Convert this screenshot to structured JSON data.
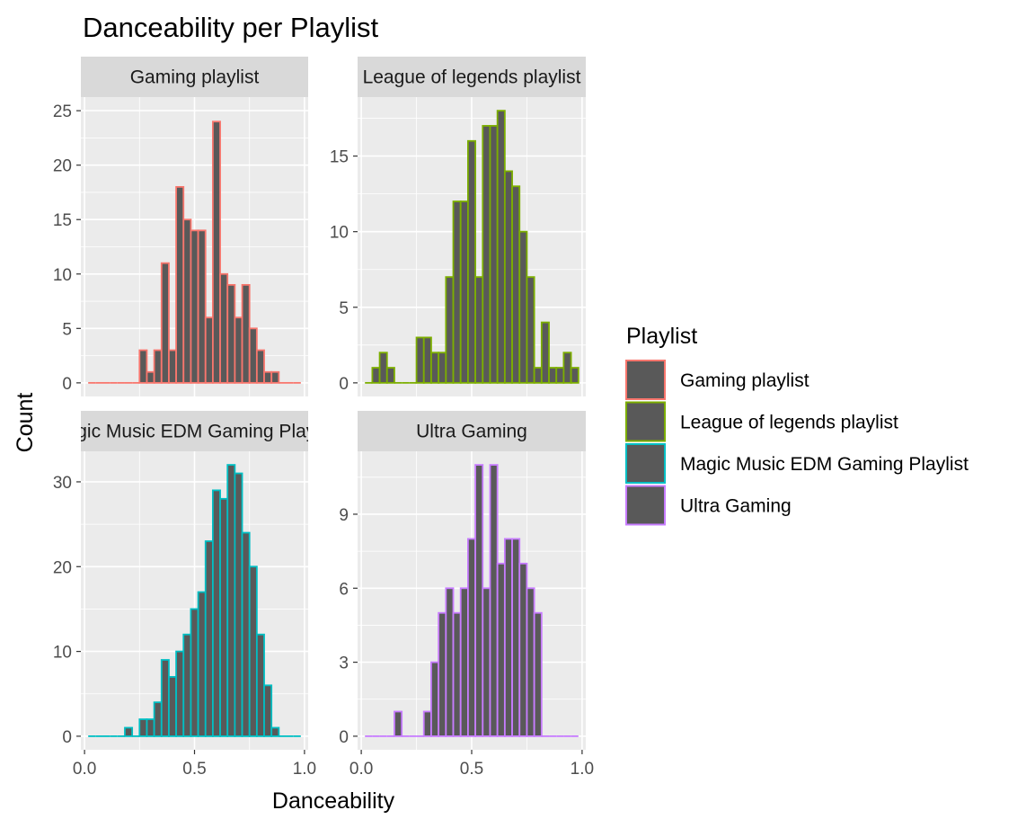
{
  "chart_data": {
    "type": "histogram",
    "title": "Danceability per Playlist",
    "xlabel": "Danceability",
    "ylabel": "Count",
    "xlim": [
      0.0,
      1.0
    ],
    "x_ticks": [
      "0.0",
      "0.5",
      "1.0"
    ],
    "bin_width": 0.0333,
    "bin_centers": [
      0.0333,
      0.0667,
      0.1,
      0.1333,
      0.1667,
      0.2,
      0.2333,
      0.2667,
      0.3,
      0.3333,
      0.3667,
      0.4,
      0.4333,
      0.4667,
      0.5,
      0.5333,
      0.5667,
      0.6,
      0.6333,
      0.6667,
      0.7,
      0.7333,
      0.7667,
      0.8,
      0.8333,
      0.8667,
      0.9,
      0.9333,
      0.9667
    ],
    "fill_color": "#595959",
    "panel_bg": "#ebebeb",
    "strip_bg": "#d9d9d9",
    "grid_color": "#ffffff",
    "legend": {
      "title": "Playlist",
      "position": "right",
      "items": [
        {
          "label": "Gaming playlist",
          "color": "#F8766D"
        },
        {
          "label": "League of legends playlist",
          "color": "#7CAE00"
        },
        {
          "label": "Magic Music EDM Gaming Playlist",
          "color": "#00BFC4"
        },
        {
          "label": "Ultra Gaming",
          "color": "#C77CFF"
        }
      ]
    },
    "panels": [
      {
        "name": "Gaming playlist",
        "strip_label": "Gaming playlist",
        "color": "#F8766D",
        "ylim": [
          0,
          25
        ],
        "y_ticks": [
          0,
          5,
          10,
          15,
          20,
          25
        ],
        "y_tick_labels": [
          "0",
          "5",
          "10",
          "15",
          "20",
          "25"
        ],
        "values": [
          0,
          0,
          0,
          0,
          0,
          0,
          0,
          3,
          1,
          3,
          11,
          3,
          18,
          15,
          14,
          14,
          6,
          24,
          10,
          9,
          6,
          9,
          5,
          3,
          1,
          1,
          0,
          0,
          0
        ]
      },
      {
        "name": "League of legends playlist",
        "strip_label": "League of legends playlist",
        "color": "#7CAE00",
        "ylim": [
          0,
          18
        ],
        "y_ticks": [
          0,
          5,
          10,
          15
        ],
        "y_tick_labels": [
          "0",
          "5",
          "10",
          "15"
        ],
        "values": [
          0,
          1,
          2,
          1,
          0,
          0,
          0,
          3,
          3,
          2,
          2,
          7,
          12,
          12,
          16,
          7,
          17,
          17,
          18,
          14,
          13,
          10,
          7,
          1,
          4,
          1,
          1,
          2,
          1
        ]
      },
      {
        "name": "Magic Music EDM Gaming Playlist",
        "strip_label": "Magic Music EDM Gaming Playlist",
        "color": "#00BFC4",
        "ylim": [
          0,
          32
        ],
        "y_ticks": [
          0,
          10,
          20,
          30
        ],
        "y_tick_labels": [
          "0",
          "10",
          "20",
          "30"
        ],
        "values": [
          0,
          0,
          0,
          0,
          0,
          1,
          0,
          2,
          2,
          4,
          9,
          7,
          10,
          12,
          15,
          17,
          23,
          29,
          28,
          32,
          31,
          24,
          20,
          12,
          6,
          1,
          0,
          0,
          0
        ]
      },
      {
        "name": "Ultra Gaming",
        "strip_label": "Ultra Gaming",
        "color": "#C77CFF",
        "ylim": [
          0,
          11
        ],
        "y_ticks": [
          0,
          3,
          6,
          9
        ],
        "y_tick_labels": [
          "0",
          "3",
          "6",
          "9"
        ],
        "values": [
          0,
          0,
          0,
          0,
          1,
          0,
          0,
          0,
          1,
          3,
          5,
          6,
          5,
          6,
          8,
          11,
          6,
          11,
          7,
          8,
          8,
          7,
          6,
          5,
          0,
          0,
          0,
          0,
          0
        ]
      }
    ]
  }
}
